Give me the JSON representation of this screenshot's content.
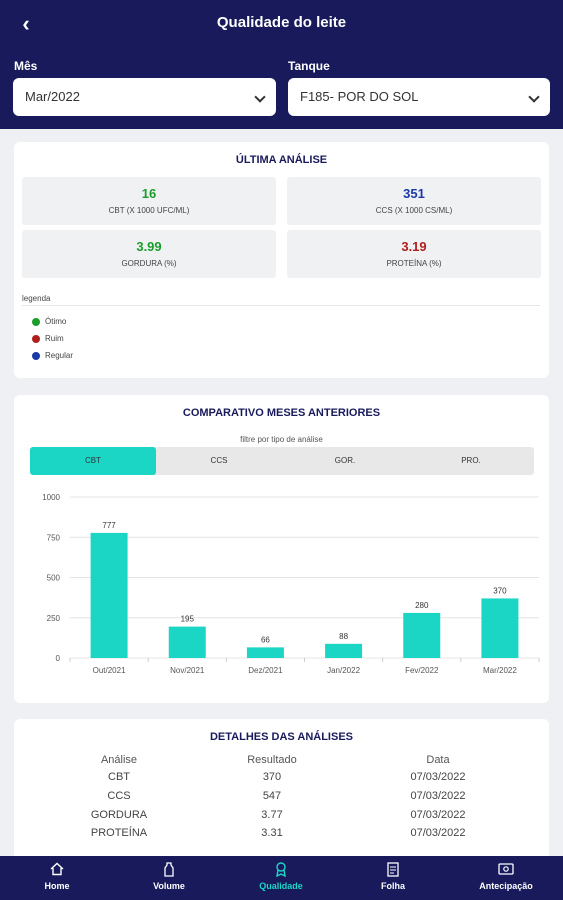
{
  "header": {
    "title": "Qualidade do leite",
    "month_label": "Mês",
    "month_value": "Mar/2022",
    "tank_label": "Tanque",
    "tank_value": "F185- POR DO SOL"
  },
  "last_analysis": {
    "title": "ÚLTIMA ANÁLISE",
    "stats": [
      {
        "value": "16",
        "label": "CBT (X 1000 UFC/ML)",
        "color": "#1a9e2a"
      },
      {
        "value": "351",
        "label": "CCS (X 1000 CS/ML)",
        "color": "#1a3aa8"
      },
      {
        "value": "3.99",
        "label": "GORDURA (%)",
        "color": "#1a9e2a"
      },
      {
        "value": "3.19",
        "label": "PROTEÍNA (%)",
        "color": "#b01e1e"
      }
    ],
    "legend_title": "legenda",
    "legend": [
      {
        "label": "Ótimo",
        "color": "#1a9e2a"
      },
      {
        "label": "Ruim",
        "color": "#b01e1e"
      },
      {
        "label": "Regular",
        "color": "#1a3aa8"
      }
    ]
  },
  "comparison": {
    "title": "COMPARATIVO MESES ANTERIORES",
    "filter_label": "filtre por tipo de análise",
    "tabs": [
      "CBT",
      "CCS",
      "GOR.",
      "PRO."
    ]
  },
  "chart_data": {
    "type": "bar",
    "categories": [
      "Out/2021",
      "Nov/2021",
      "Dez/2021",
      "Jan/2022",
      "Fev/2022",
      "Mar/2022"
    ],
    "values": [
      777,
      195,
      66,
      88,
      280,
      370
    ],
    "ylim": [
      0,
      1000
    ],
    "yticks": [
      0,
      250,
      500,
      750,
      1000
    ],
    "bar_color": "#1cd6c5",
    "grid": true
  },
  "details": {
    "title": "DETALHES DAS ANÁLISES",
    "headers": [
      "Análise",
      "Resultado",
      "Data"
    ],
    "rows": [
      [
        "CBT",
        "370",
        "07/03/2022"
      ],
      [
        "CCS",
        "547",
        "07/03/2022"
      ],
      [
        "GORDURA",
        "3.77",
        "07/03/2022"
      ],
      [
        "PROTEÍNA",
        "3.31",
        "07/03/2022"
      ]
    ]
  },
  "nav": {
    "items": [
      {
        "label": "Home",
        "icon": "home-icon"
      },
      {
        "label": "Volume",
        "icon": "milk-bottle-icon"
      },
      {
        "label": "Qualidade",
        "icon": "quality-icon"
      },
      {
        "label": "Folha",
        "icon": "document-icon"
      },
      {
        "label": "Antecipação",
        "icon": "money-icon"
      }
    ],
    "active_color": "#1cd6c5"
  }
}
